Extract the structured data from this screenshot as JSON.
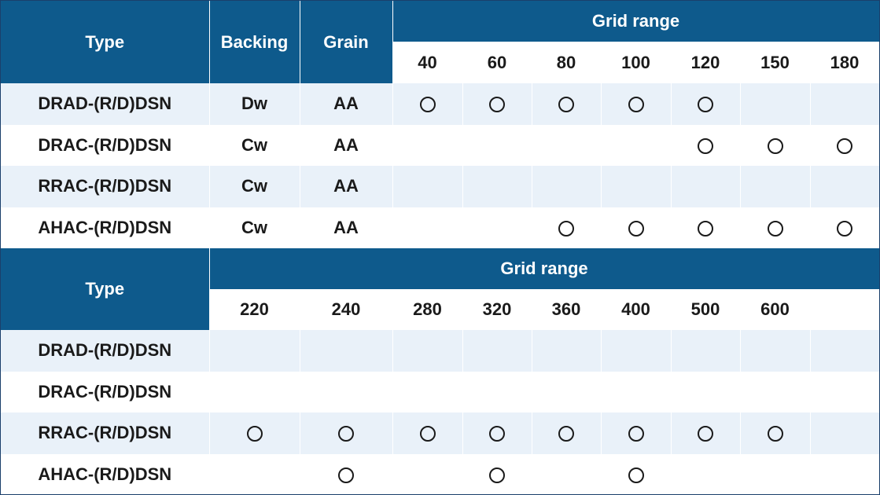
{
  "table1": {
    "headers": {
      "type": "Type",
      "backing": "Backing",
      "grain": "Grain",
      "grid_range": "Grid range"
    },
    "grits": [
      "40",
      "60",
      "80",
      "100",
      "120",
      "150",
      "180"
    ],
    "rows": [
      {
        "type": "DRAD-(R/D)DSN",
        "backing": "Dw",
        "grain": "AA",
        "marks": [
          true,
          true,
          true,
          true,
          true,
          false,
          false
        ]
      },
      {
        "type": "DRAC-(R/D)DSN",
        "backing": "Cw",
        "grain": "AA",
        "marks": [
          false,
          false,
          false,
          false,
          true,
          true,
          true
        ]
      },
      {
        "type": "RRAC-(R/D)DSN",
        "backing": "Cw",
        "grain": "AA",
        "marks": [
          false,
          false,
          false,
          false,
          false,
          false,
          false
        ]
      },
      {
        "type": "AHAC-(R/D)DSN",
        "backing": "Cw",
        "grain": "AA",
        "marks": [
          false,
          false,
          true,
          true,
          true,
          true,
          true
        ]
      }
    ]
  },
  "table2": {
    "headers": {
      "type": "Type",
      "grid_range": "Grid range"
    },
    "grits": [
      "220",
      "240",
      "280",
      "320",
      "360",
      "400",
      "500",
      "600",
      ""
    ],
    "rows": [
      {
        "type": "DRAD-(R/D)DSN",
        "marks": [
          false,
          false,
          false,
          false,
          false,
          false,
          false,
          false,
          false
        ]
      },
      {
        "type": "DRAC-(R/D)DSN",
        "marks": [
          false,
          false,
          false,
          false,
          false,
          false,
          false,
          false,
          false
        ]
      },
      {
        "type": "RRAC-(R/D)DSN",
        "marks": [
          true,
          true,
          true,
          true,
          true,
          true,
          true,
          true,
          false
        ]
      },
      {
        "type": "AHAC-(R/D)DSN",
        "marks": [
          false,
          true,
          false,
          true,
          false,
          true,
          false,
          false,
          false
        ]
      }
    ]
  }
}
